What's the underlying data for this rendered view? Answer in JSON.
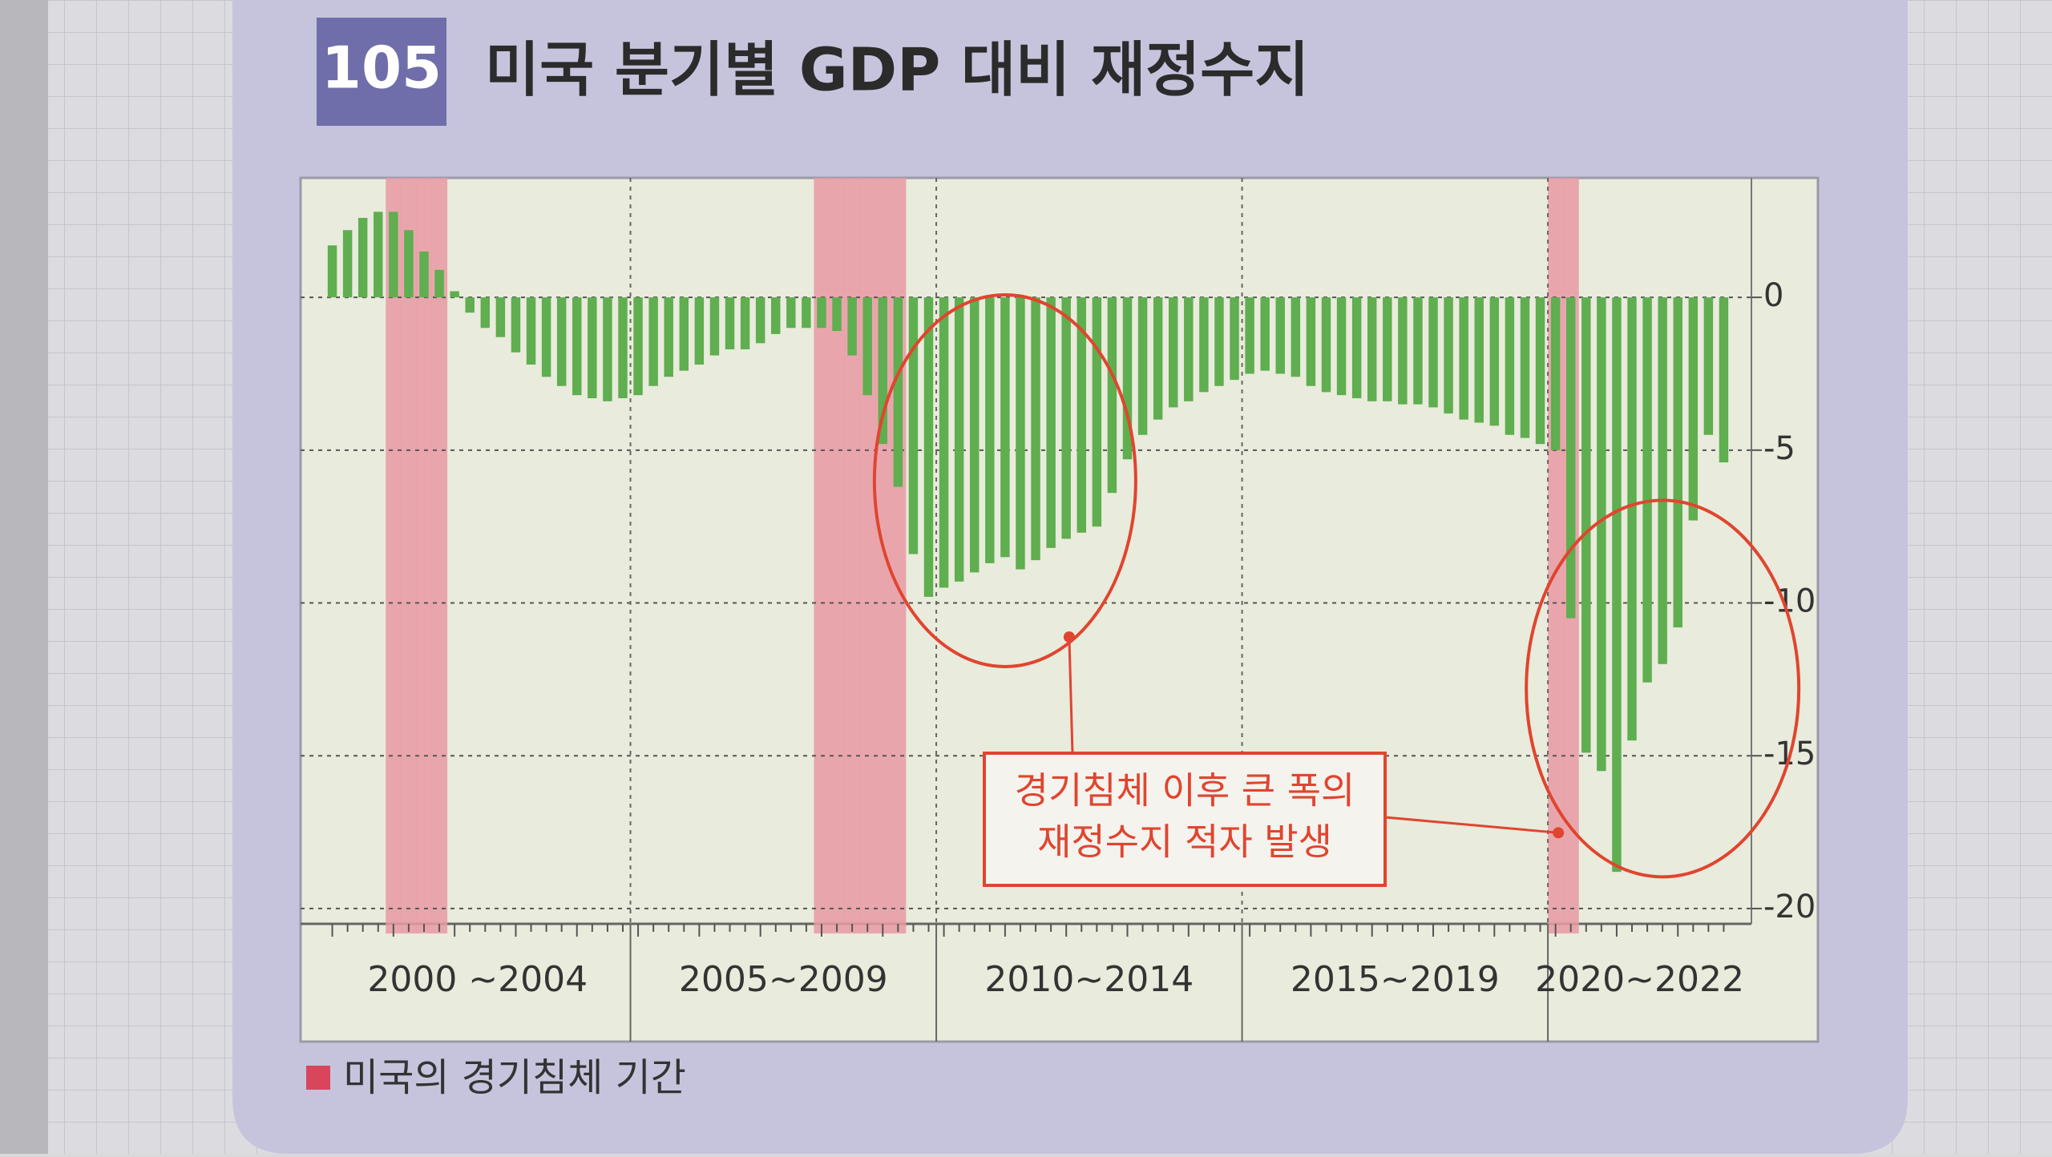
{
  "chart_data": {
    "type": "bar",
    "figure_number": "105",
    "title": "미국 분기별 GDP 대비 재정수지",
    "color": "#5fae4f",
    "recession_color": "#e79aa3",
    "ylim": [
      -20.5,
      3.7
    ],
    "yticks": [
      0,
      -5,
      -10,
      -15,
      -20
    ],
    "grid": true,
    "groups": [
      {
        "label": "2000 ~2004",
        "values": [
          1.7,
          2.2,
          2.6,
          2.8,
          2.8,
          2.2,
          1.5,
          0.9,
          0.2,
          -0.5,
          -1.0,
          -1.3,
          -1.8,
          -2.2,
          -2.6,
          -2.9,
          -3.2,
          -3.3,
          -3.4,
          -3.3
        ],
        "recession": [
          false,
          false,
          false,
          false,
          true,
          true,
          true,
          true,
          false,
          false,
          false,
          false,
          false,
          false,
          false,
          false,
          false,
          false,
          false,
          false
        ]
      },
      {
        "label": "2005~2009",
        "values": [
          -3.2,
          -2.9,
          -2.6,
          -2.4,
          -2.2,
          -1.9,
          -1.7,
          -1.7,
          -1.5,
          -1.2,
          -1.0,
          -1.0,
          -1.0,
          -1.1,
          -1.9,
          -3.2,
          -4.8,
          -6.2,
          -8.4,
          -9.8
        ],
        "recession": [
          false,
          false,
          false,
          false,
          false,
          false,
          false,
          false,
          false,
          false,
          false,
          false,
          true,
          true,
          true,
          true,
          true,
          true,
          false,
          false
        ]
      },
      {
        "label": "2010~2014",
        "values": [
          -9.5,
          -9.3,
          -9.0,
          -8.7,
          -8.5,
          -8.9,
          -8.6,
          -8.2,
          -7.9,
          -7.7,
          -7.5,
          -6.4,
          -5.3,
          -4.5,
          -4.0,
          -3.6,
          -3.4,
          -3.1,
          -2.9,
          -2.7
        ],
        "recession": [
          false,
          false,
          false,
          false,
          false,
          false,
          false,
          false,
          false,
          false,
          false,
          false,
          false,
          false,
          false,
          false,
          false,
          false,
          false,
          false
        ]
      },
      {
        "label": "2015~2019",
        "values": [
          -2.5,
          -2.4,
          -2.5,
          -2.6,
          -2.9,
          -3.1,
          -3.2,
          -3.3,
          -3.4,
          -3.4,
          -3.5,
          -3.5,
          -3.6,
          -3.8,
          -4.0,
          -4.1,
          -4.2,
          -4.5,
          -4.6,
          -4.8
        ],
        "recession": [
          false,
          false,
          false,
          false,
          false,
          false,
          false,
          false,
          false,
          false,
          false,
          false,
          false,
          false,
          false,
          false,
          false,
          false,
          false,
          false
        ]
      },
      {
        "label": "2020~2022",
        "values": [
          -5.0,
          -10.5,
          -14.9,
          -15.5,
          -18.8,
          -14.5,
          -12.6,
          -12.0,
          -10.8,
          -7.3,
          -4.5,
          -5.4
        ],
        "recession": [
          true,
          true,
          false,
          false,
          false,
          false,
          false,
          false,
          false,
          false,
          false,
          false
        ]
      }
    ],
    "annotation": [
      "경기침체 이후 큰 폭의",
      "재정수지 적자 발생"
    ],
    "legend": "미국의 경기침체 기간"
  }
}
